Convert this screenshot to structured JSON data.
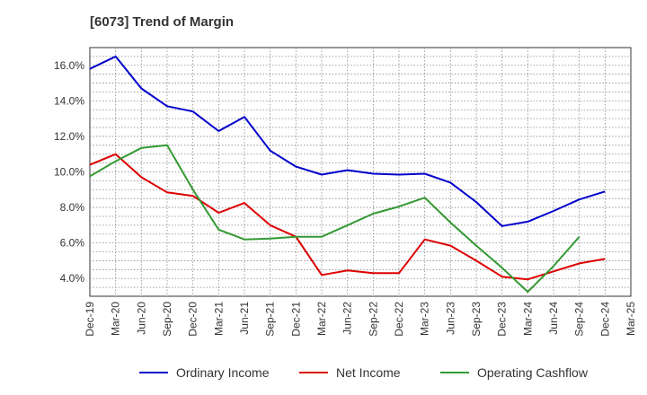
{
  "chart_data": {
    "type": "line",
    "title": "[6073]  Trend of Margin",
    "xlabel": "",
    "ylabel": "",
    "categories": [
      "Dec-19",
      "Mar-20",
      "Jun-20",
      "Sep-20",
      "Dec-20",
      "Mar-21",
      "Jun-21",
      "Sep-21",
      "Dec-21",
      "Mar-22",
      "Jun-22",
      "Sep-22",
      "Dec-22",
      "Mar-23",
      "Jun-23",
      "Sep-23",
      "Dec-23",
      "Mar-24",
      "Jun-24",
      "Sep-24",
      "Dec-24",
      "Mar-25"
    ],
    "ylim": [
      3.0,
      17.0
    ],
    "yticks": [
      4.0,
      6.0,
      8.0,
      10.0,
      12.0,
      14.0,
      16.0
    ],
    "ytick_labels": [
      "4.0%",
      "6.0%",
      "8.0%",
      "10.0%",
      "12.0%",
      "14.0%",
      "16.0%"
    ],
    "grid": true,
    "legend_position": "bottom",
    "series": [
      {
        "name": "Ordinary Income",
        "color": "#0000cc",
        "values": [
          15.8,
          16.5,
          14.7,
          13.7,
          13.4,
          12.3,
          13.1,
          11.2,
          10.3,
          9.85,
          10.1,
          9.9,
          9.85,
          9.9,
          9.4,
          8.3,
          6.95,
          7.2,
          7.8,
          8.45,
          8.9,
          null
        ]
      },
      {
        "name": "Net Income",
        "color": "#dd0000",
        "values": [
          10.4,
          11.0,
          9.7,
          8.85,
          8.65,
          7.7,
          8.25,
          7.0,
          6.35,
          4.2,
          4.45,
          4.3,
          4.3,
          6.2,
          5.85,
          5.0,
          4.1,
          3.95,
          4.4,
          4.85,
          5.1,
          null
        ]
      },
      {
        "name": "Operating Cashflow",
        "color": "#339933",
        "values": [
          9.75,
          10.6,
          11.35,
          11.5,
          9.0,
          6.75,
          6.2,
          6.25,
          6.35,
          6.35,
          7.0,
          7.65,
          8.05,
          8.55,
          7.15,
          5.85,
          4.6,
          3.25,
          4.7,
          6.35,
          null,
          null
        ]
      }
    ]
  }
}
